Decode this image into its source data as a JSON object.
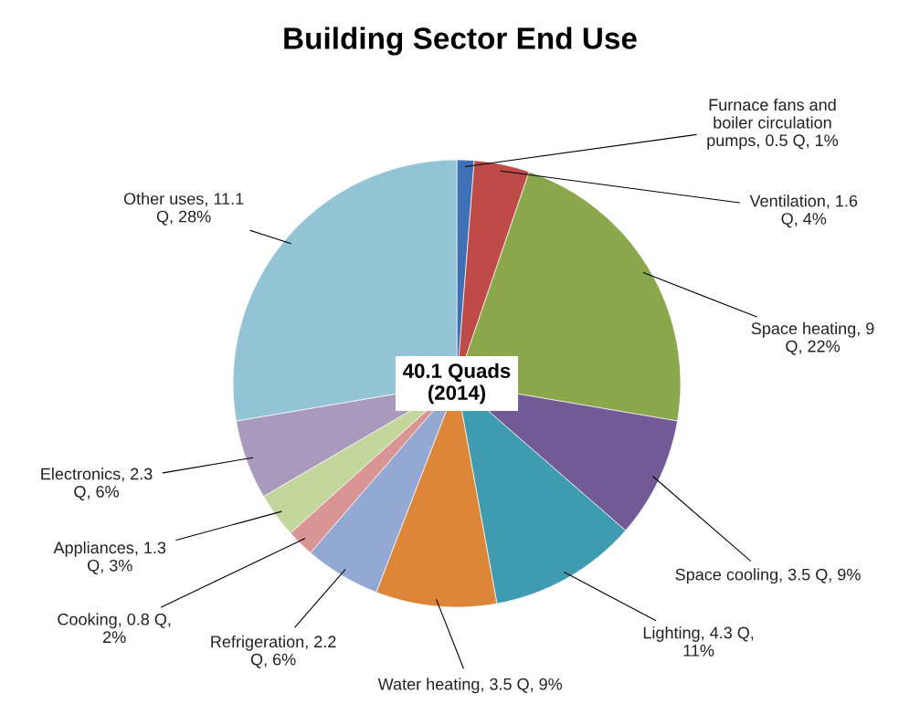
{
  "chart_data": {
    "type": "pie",
    "title": "Building Sector End Use",
    "categories": [
      "Furnace fans and\nboiler circulation\npumps",
      "Ventilation",
      "Space heating",
      "Space cooling",
      "Lighting",
      "Water heating",
      "Refrigeration",
      "Cooking",
      "Appliances",
      "Electronics",
      "Other uses"
    ],
    "values": [
      0.5,
      1.6,
      9,
      3.5,
      4.3,
      3.5,
      2.2,
      0.8,
      1.3,
      2.3,
      11.1
    ],
    "value_labels": [
      "0.5 Q, 1%",
      "1.6\nQ, 4%",
      "9\nQ, 22%",
      "3.5 Q, 9%",
      "4.3 Q,\n11%",
      "3.5 Q, 9%",
      "2.2\nQ, 6%",
      "0.8 Q,\n2%",
      "1.3\nQ, 3%",
      "2.3\nQ, 6%",
      "11.1\nQ, 28%"
    ],
    "colors": [
      "#3f6fb5",
      "#be4b48",
      "#8aa84b",
      "#725a96",
      "#3e9bb0",
      "#dd8539",
      "#93a9d4",
      "#d99594",
      "#c3d69b",
      "#a899bd",
      "#93c4d6"
    ],
    "annotations": [
      "40.1 Quads\n(2014)"
    ]
  }
}
